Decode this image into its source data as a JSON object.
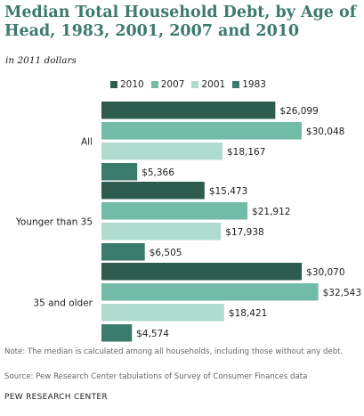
{
  "header": {
    "title": "Median Total Household Debt, by Age of Head, 1983, 2001, 2007 and 2010",
    "subtitle": "in 2011 dollars"
  },
  "footer": {
    "note": "Note: The median is calculated among all households, including those without any debt.",
    "source": "Source: Pew Research Center tabulations of Survey of Consumer Finances data",
    "brand": "PEW RESEARCH CENTER"
  },
  "colors": {
    "2010": "#2e5c4e",
    "2007": "#72bba6",
    "2001": "#b0dbcf",
    "1983": "#3b7b6b"
  },
  "chart_data": {
    "type": "bar",
    "orientation": "horizontal",
    "title": "Median Total Household Debt, by Age of Head, 1983, 2001, 2007 and 2010",
    "subtitle": "in 2011 dollars",
    "legend_position": "top",
    "grid": false,
    "xlim": [
      0,
      35000
    ],
    "categories": [
      "All",
      "Younger than 35",
      "35 and older"
    ],
    "series": [
      {
        "name": "2010",
        "values": [
          26099,
          15473,
          30070
        ],
        "labels": [
          "$26,099",
          "$15,473",
          "$30,070"
        ]
      },
      {
        "name": "2007",
        "values": [
          30048,
          21912,
          32543
        ],
        "labels": [
          "$30,048",
          "$21,912",
          "$32,543"
        ]
      },
      {
        "name": "2001",
        "values": [
          18167,
          17938,
          18421
        ],
        "labels": [
          "$18,167",
          "$17,938",
          "$18,421"
        ]
      },
      {
        "name": "1983",
        "values": [
          5366,
          6505,
          4574
        ],
        "labels": [
          "$5,366",
          "$6,505",
          "$4,574"
        ]
      }
    ]
  }
}
